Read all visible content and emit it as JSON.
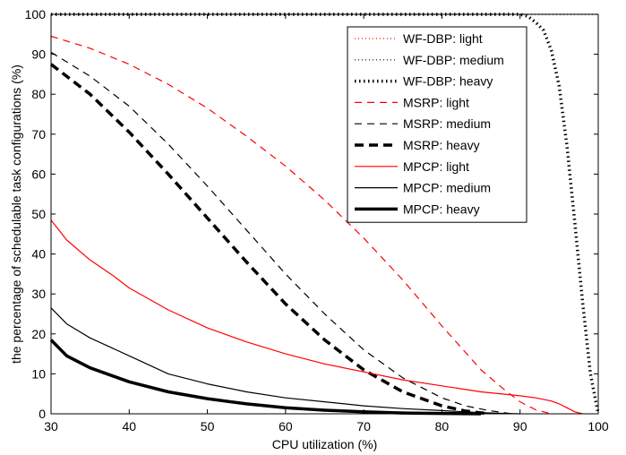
{
  "chart_data": {
    "type": "line",
    "title": "",
    "xlabel": "CPU utilization (%)",
    "ylabel": "the percentage of schedulable task configurations (%)",
    "xlim": [
      30,
      100
    ],
    "ylim": [
      0,
      100
    ],
    "x_ticks": [
      30,
      40,
      50,
      60,
      70,
      80,
      90,
      100
    ],
    "y_ticks": [
      0,
      10,
      20,
      30,
      40,
      50,
      60,
      70,
      80,
      90,
      100
    ],
    "grid": false,
    "legend_position": "top-right",
    "series": [
      {
        "name": "WF-DBP: light",
        "color": "#ff0000",
        "dash": "dotted",
        "weight": "thin",
        "x": [
          30,
          40,
          50,
          60,
          70,
          80,
          90,
          100
        ],
        "y": [
          100,
          100,
          100,
          100,
          100,
          100,
          100,
          100
        ]
      },
      {
        "name": "WF-DBP: medium",
        "color": "#000000",
        "dash": "dotted",
        "weight": "thin",
        "x": [
          30,
          40,
          50,
          60,
          70,
          80,
          90,
          100
        ],
        "y": [
          100,
          100,
          100,
          100,
          100,
          100,
          100,
          100
        ]
      },
      {
        "name": "WF-DBP: heavy",
        "color": "#000000",
        "dash": "dotted",
        "weight": "heavy",
        "x": [
          30,
          40,
          50,
          60,
          70,
          80,
          90,
          91,
          92,
          93,
          94,
          95,
          96,
          97,
          98,
          99,
          100
        ],
        "y": [
          100,
          100,
          100,
          100,
          100,
          100,
          100,
          99.5,
          98,
          96,
          91,
          82,
          67,
          48,
          28,
          10,
          0
        ]
      },
      {
        "name": "MSRP: light",
        "color": "#ff0000",
        "dash": "dashed",
        "weight": "thin",
        "x": [
          30,
          35,
          40,
          45,
          50,
          55,
          60,
          65,
          70,
          75,
          80,
          85,
          88,
          90,
          92,
          94
        ],
        "y": [
          94.5,
          91.5,
          87.5,
          82.5,
          76.5,
          69.5,
          62,
          53.5,
          44,
          33.5,
          22,
          11,
          6,
          3,
          1,
          0
        ]
      },
      {
        "name": "MSRP: medium",
        "color": "#000000",
        "dash": "dashed",
        "weight": "thin",
        "x": [
          30,
          35,
          40,
          45,
          50,
          55,
          60,
          65,
          70,
          75,
          80,
          83,
          86,
          89
        ],
        "y": [
          90.5,
          84.5,
          77,
          67.5,
          57,
          46,
          35,
          25,
          16,
          9,
          4,
          2,
          0.8,
          0
        ]
      },
      {
        "name": "MSRP: heavy",
        "color": "#000000",
        "dash": "dashed",
        "weight": "heavy",
        "x": [
          30,
          35,
          40,
          45,
          50,
          55,
          60,
          65,
          70,
          75,
          80,
          83,
          86
        ],
        "y": [
          87.5,
          80,
          70.5,
          60,
          49,
          38,
          27.5,
          18.5,
          11,
          5.5,
          2,
          0.7,
          0
        ]
      },
      {
        "name": "MPCP: light",
        "color": "#ff0000",
        "dash": "solid",
        "weight": "thin",
        "x": [
          30,
          32,
          35,
          38,
          40,
          45,
          50,
          55,
          60,
          65,
          70,
          75,
          80,
          85,
          90,
          92,
          94,
          95,
          96,
          97,
          98
        ],
        "y": [
          48.5,
          43.5,
          38.5,
          34.5,
          31.5,
          26,
          21.5,
          18,
          15,
          12.5,
          10.5,
          8.5,
          7,
          5.5,
          4.5,
          4,
          3.2,
          2.5,
          1.5,
          0.5,
          0
        ]
      },
      {
        "name": "MPCP: medium",
        "color": "#000000",
        "dash": "solid",
        "weight": "thin",
        "x": [
          30,
          32,
          35,
          40,
          45,
          50,
          55,
          60,
          65,
          70,
          75,
          80,
          85,
          88,
          90
        ],
        "y": [
          26.5,
          22.5,
          19,
          14.5,
          10,
          7.5,
          5.5,
          4,
          3,
          2,
          1.3,
          0.8,
          0.3,
          0.1,
          0
        ]
      },
      {
        "name": "MPCP: heavy",
        "color": "#000000",
        "dash": "solid",
        "weight": "heavy",
        "x": [
          30,
          32,
          35,
          40,
          45,
          50,
          55,
          60,
          65,
          70,
          75,
          80,
          85
        ],
        "y": [
          18.5,
          14.5,
          11.5,
          8,
          5.5,
          3.8,
          2.5,
          1.5,
          0.9,
          0.5,
          0.2,
          0.1,
          0
        ]
      }
    ]
  }
}
